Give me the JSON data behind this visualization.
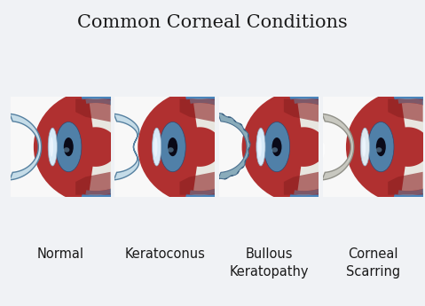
{
  "title": "Common Corneal Conditions",
  "title_fontsize": 15,
  "background_color": "#f0f2f5",
  "panel_bg": "#ffffff",
  "labels": [
    "Normal",
    "Keratoconus",
    "Bullous\nKeratopathy",
    "Corneal\nScarring"
  ],
  "label_fontsize": 10.5,
  "colors": {
    "red_sclera": "#b03030",
    "red_sclera_dark": "#8b2020",
    "blue_outer": "#4a85bb",
    "blue_inner": "#6aadd5",
    "white_sclera": "#e8e6e0",
    "cornea_normal": "#c5dce8",
    "cornea_edge": "#5580a0",
    "iris_blue": "#5080a8",
    "iris_dark": "#304870",
    "lens_white": "#d8eaf8",
    "lens_bright": "#eef6ff",
    "pupil": "#0a0a18",
    "cornea_bullous": "#8aacbb",
    "cornea_scarred": "#c8c8c0",
    "panel_border": "#c8c8c8"
  }
}
